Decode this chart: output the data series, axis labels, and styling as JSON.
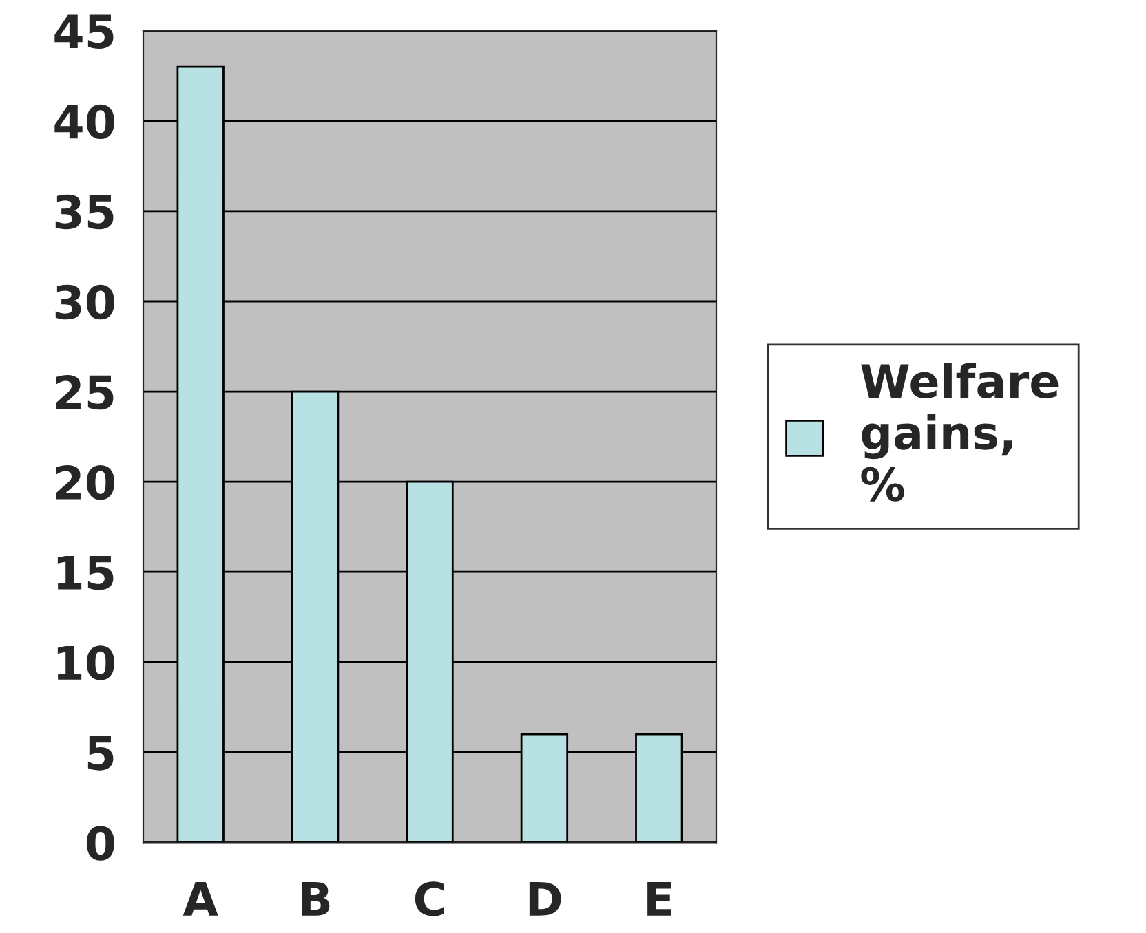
{
  "chart_data": {
    "type": "bar",
    "categories": [
      "A",
      "B",
      "C",
      "D",
      "E"
    ],
    "series": [
      {
        "name": "Welfare gains, %",
        "color": "#b7e1e3",
        "values": [
          43,
          25,
          20,
          6,
          6
        ]
      }
    ],
    "ylim": [
      0,
      45
    ],
    "yticks": [
      0,
      5,
      10,
      15,
      20,
      25,
      30,
      35,
      40,
      45
    ],
    "grid": "y",
    "legend": "right"
  }
}
